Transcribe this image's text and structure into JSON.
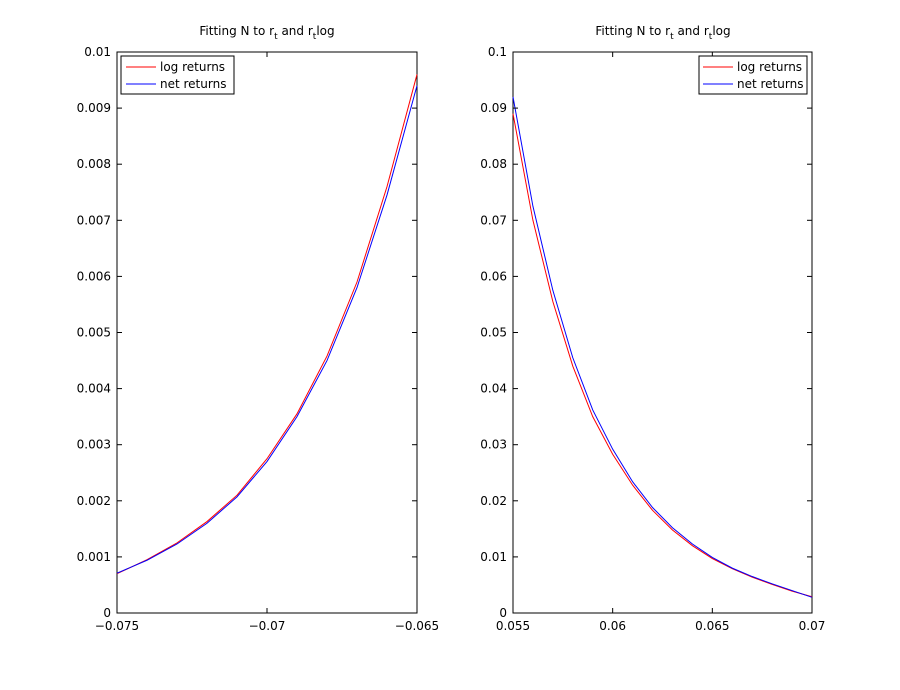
{
  "chart_data": [
    {
      "type": "line",
      "title_main": "Fitting N to r",
      "title_sub1": "t",
      "title_mid": " and r",
      "title_sub2": "t",
      "title_end": "log",
      "xlim": [
        -0.075,
        -0.065
      ],
      "ylim": [
        0,
        0.01
      ],
      "xticks": [
        -0.075,
        -0.07,
        -0.065
      ],
      "xtick_labels": [
        "−0.075",
        "−0.07",
        "−0.065"
      ],
      "yticks": [
        0,
        0.001,
        0.002,
        0.003,
        0.004,
        0.005,
        0.006,
        0.007,
        0.008,
        0.009,
        0.01
      ],
      "ytick_labels": [
        "0",
        "0.001",
        "0.002",
        "0.003",
        "0.004",
        "0.005",
        "0.006",
        "0.007",
        "0.008",
        "0.009",
        "0.01"
      ],
      "legend_position": "top-left",
      "series": [
        {
          "name": "log returns",
          "color": "#ff0000",
          "x": [
            -0.075,
            -0.074,
            -0.073,
            -0.072,
            -0.071,
            -0.07,
            -0.069,
            -0.068,
            -0.067,
            -0.066,
            -0.065
          ],
          "y": [
            0.0007,
            0.00095,
            0.00125,
            0.00163,
            0.0021,
            0.00275,
            0.00355,
            0.00458,
            0.0059,
            0.0076,
            0.0096
          ]
        },
        {
          "name": "net returns",
          "color": "#0000ff",
          "x": [
            -0.075,
            -0.074,
            -0.073,
            -0.072,
            -0.071,
            -0.07,
            -0.069,
            -0.068,
            -0.067,
            -0.066,
            -0.065
          ],
          "y": [
            0.00071,
            0.00094,
            0.00123,
            0.0016,
            0.00207,
            0.0027,
            0.0035,
            0.0045,
            0.0058,
            0.00745,
            0.0094
          ]
        }
      ]
    },
    {
      "type": "line",
      "title_main": "Fitting N to r",
      "title_sub1": "t",
      "title_mid": " and r",
      "title_sub2": "t",
      "title_end": "log",
      "xlim": [
        0.055,
        0.07
      ],
      "ylim": [
        0,
        0.1
      ],
      "xticks": [
        0.055,
        0.06,
        0.065,
        0.07
      ],
      "xtick_labels": [
        "0.055",
        "0.06",
        "0.065",
        "0.07"
      ],
      "yticks": [
        0,
        0.01,
        0.02,
        0.03,
        0.04,
        0.05,
        0.06,
        0.07,
        0.08,
        0.09,
        0.1
      ],
      "ytick_labels": [
        "0",
        "0.01",
        "0.02",
        "0.03",
        "0.04",
        "0.05",
        "0.06",
        "0.07",
        "0.08",
        "0.09",
        "0.1"
      ],
      "legend_position": "top-right",
      "series": [
        {
          "name": "log returns",
          "color": "#ff0000",
          "x": [
            0.055,
            0.056,
            0.057,
            0.058,
            0.059,
            0.06,
            0.061,
            0.062,
            0.063,
            0.064,
            0.065,
            0.066,
            0.067,
            0.068,
            0.069,
            0.07
          ],
          "y": [
            0.089,
            0.07,
            0.0555,
            0.044,
            0.035,
            0.0283,
            0.0228,
            0.0183,
            0.0148,
            0.012,
            0.0097,
            0.0079,
            0.0064,
            0.0051,
            0.0039,
            0.0029
          ]
        },
        {
          "name": "net returns",
          "color": "#0000ff",
          "x": [
            0.055,
            0.056,
            0.057,
            0.058,
            0.059,
            0.06,
            0.061,
            0.062,
            0.063,
            0.064,
            0.065,
            0.066,
            0.067,
            0.068,
            0.069,
            0.07
          ],
          "y": [
            0.092,
            0.0725,
            0.0575,
            0.0455,
            0.0362,
            0.0292,
            0.0234,
            0.0188,
            0.0152,
            0.0123,
            0.0099,
            0.008,
            0.0065,
            0.0052,
            0.004,
            0.0028
          ]
        }
      ]
    }
  ]
}
